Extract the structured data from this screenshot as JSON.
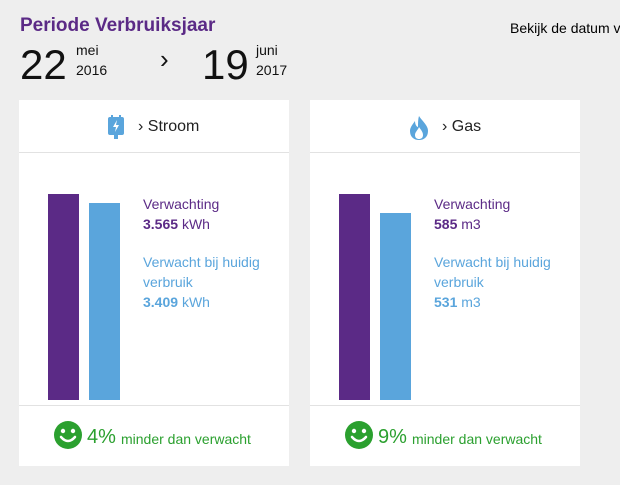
{
  "header": {
    "title": "Periode Verbruiksjaar",
    "view_date_link": "Bekijk de datum v",
    "start": {
      "day": "22",
      "month": "mei",
      "year": "2016"
    },
    "arrow": "›",
    "end": {
      "day": "19",
      "month": "juni",
      "year": "2017"
    }
  },
  "colors": {
    "accent": "#5b2a86",
    "secondary": "#5aa5dc",
    "positive": "#2ba02f"
  },
  "cards": [
    {
      "icon": "plug-icon",
      "title": "› Stroom",
      "expected_label": "Verwachting",
      "expected_value": "3.565",
      "expected_unit": "kWh",
      "current_label_1": "Verwacht bij huidig",
      "current_label_2": "verbruik",
      "current_value": "3.409",
      "current_unit": "kWh",
      "chart_data": {
        "type": "bar",
        "values": [
          3565,
          3409
        ],
        "ylim": [
          0,
          3565
        ]
      },
      "percentage": "4%",
      "percentage_text": "minder dan verwacht"
    },
    {
      "icon": "flame-icon",
      "title": "› Gas",
      "expected_label": "Verwachting",
      "expected_value": "585",
      "expected_unit": "m3",
      "current_label_1": "Verwacht bij huidig",
      "current_label_2": "verbruik",
      "current_value": "531",
      "current_unit": "m3",
      "chart_data": {
        "type": "bar",
        "values": [
          585,
          531
        ],
        "ylim": [
          0,
          585
        ]
      },
      "percentage": "9%",
      "percentage_text": "minder dan verwacht"
    }
  ]
}
